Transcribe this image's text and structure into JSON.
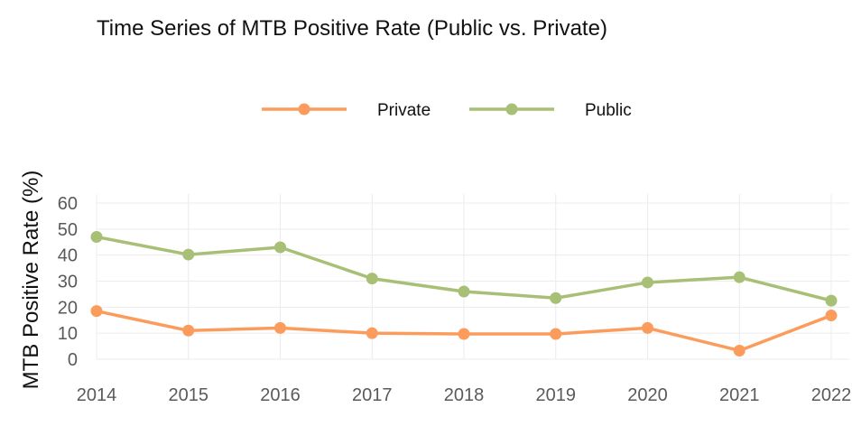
{
  "chart_data": {
    "type": "line",
    "title": "Time Series of MTB Positive Rate (Public vs. Private)",
    "xlabel": "",
    "ylabel": "MTB Positive Rate (%)",
    "x": [
      "2014",
      "2015",
      "2016",
      "2017",
      "2018",
      "2019",
      "2020",
      "2021",
      "2022"
    ],
    "ylim": [
      0,
      60
    ],
    "yticks": [
      "0",
      "10",
      "20",
      "30",
      "40",
      "50",
      "60"
    ],
    "grid": true,
    "legend_position": "top-center",
    "series": [
      {
        "name": "Private",
        "color": "#fc9c5c",
        "values": [
          18.5,
          11,
          12,
          10,
          9.7,
          9.7,
          12,
          3.3,
          16.8
        ]
      },
      {
        "name": "Public",
        "color": "#a8bf76",
        "values": [
          47,
          40.2,
          43,
          31,
          26,
          23.5,
          29.5,
          31.5,
          22.5
        ]
      }
    ]
  }
}
